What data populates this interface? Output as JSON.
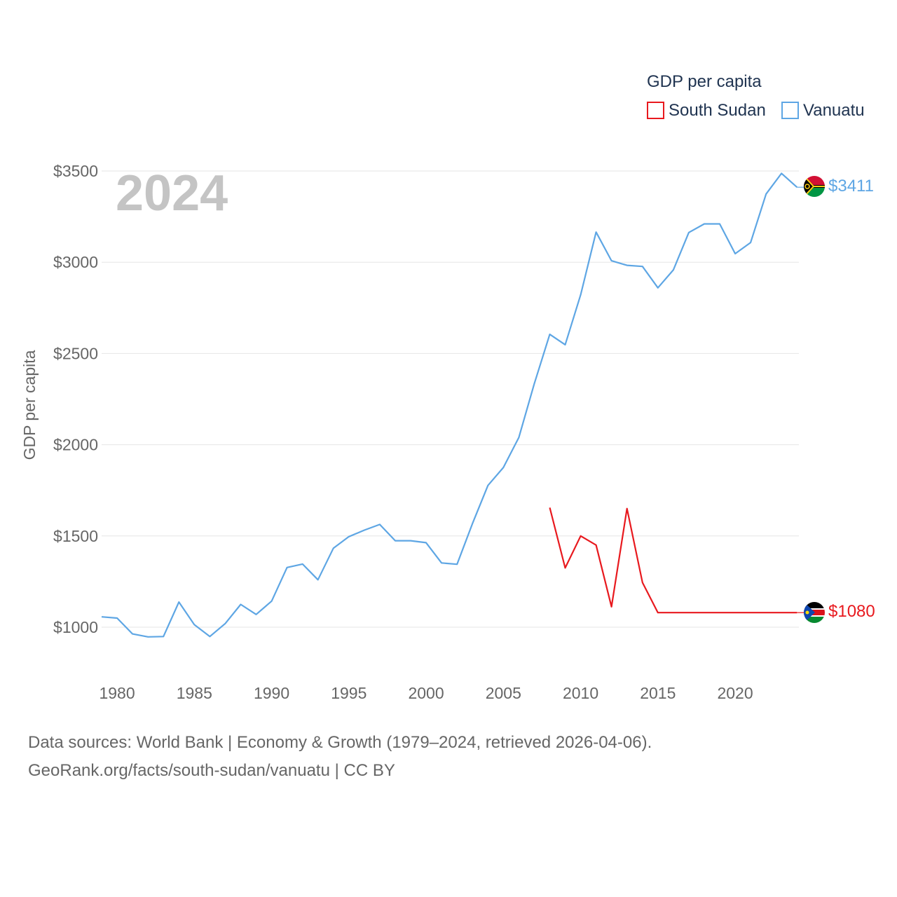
{
  "chart_data": {
    "type": "line",
    "year_label": "2024",
    "ylabel": "GDP per capita",
    "legend_title": "GDP per capita",
    "xlim": [
      1979,
      2024
    ],
    "ylim": [
      750,
      3600
    ],
    "y_ticks": [
      {
        "value": 1000,
        "label": "$1000"
      },
      {
        "value": 1500,
        "label": "$1500"
      },
      {
        "value": 2000,
        "label": "$2000"
      },
      {
        "value": 2500,
        "label": "$2500"
      },
      {
        "value": 3000,
        "label": "$3000"
      },
      {
        "value": 3500,
        "label": "$3500"
      }
    ],
    "x_ticks": [
      {
        "value": 1980,
        "label": "1980"
      },
      {
        "value": 1985,
        "label": "1985"
      },
      {
        "value": 1990,
        "label": "1990"
      },
      {
        "value": 1995,
        "label": "1995"
      },
      {
        "value": 2000,
        "label": "2000"
      },
      {
        "value": 2005,
        "label": "2005"
      },
      {
        "value": 2010,
        "label": "2010"
      },
      {
        "value": 2015,
        "label": "2015"
      },
      {
        "value": 2020,
        "label": "2020"
      }
    ],
    "series": [
      {
        "name": "South Sudan",
        "color": "#e8191e",
        "end_label": "$1080",
        "flag": "south-sudan-flag-icon",
        "x": [
          2008,
          2009,
          2010,
          2011,
          2012,
          2013,
          2014,
          2015,
          2024
        ],
        "values": [
          1655,
          1325,
          1500,
          1450,
          1112,
          1650,
          1245,
          1080,
          1080
        ]
      },
      {
        "name": "Vanuatu",
        "color": "#5ea6e4",
        "end_label": "$3411",
        "flag": "vanuatu-flag-icon",
        "x": [
          1979,
          1980,
          1981,
          1982,
          1983,
          1984,
          1985,
          1986,
          1987,
          1988,
          1989,
          1990,
          1991,
          1992,
          1993,
          1994,
          1995,
          1996,
          1997,
          1998,
          1999,
          2000,
          2001,
          2002,
          2003,
          2004,
          2005,
          2006,
          2007,
          2008,
          2009,
          2010,
          2011,
          2012,
          2013,
          2014,
          2015,
          2016,
          2017,
          2018,
          2019,
          2020,
          2021,
          2022,
          2023,
          2024
        ],
        "values": [
          1057,
          1050,
          963,
          947,
          949,
          1138,
          1014,
          949,
          1020,
          1125,
          1070,
          1143,
          1327,
          1346,
          1260,
          1433,
          1496,
          1532,
          1563,
          1474,
          1474,
          1463,
          1352,
          1345,
          1568,
          1777,
          1875,
          2040,
          2334,
          2605,
          2548,
          2822,
          3165,
          3008,
          2983,
          2977,
          2860,
          2958,
          3163,
          3210,
          3210,
          3047,
          3108,
          3374,
          3487,
          3411
        ]
      }
    ]
  },
  "footer": {
    "line1": "Data sources: World Bank | Economy & Growth (1979–2024, retrieved 2026-04-06).",
    "line2": "GeoRank.org/facts/south-sudan/vanuatu | CC BY"
  }
}
